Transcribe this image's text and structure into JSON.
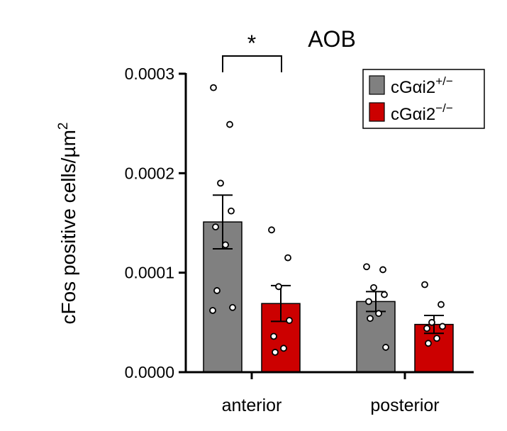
{
  "chart_data": {
    "type": "bar",
    "title": "AOB",
    "ylabel": "cFos positive cells/µm",
    "ylabel_sup": "2",
    "ylim": [
      0,
      0.0003
    ],
    "yticks": [
      "0.0000",
      "0.0001",
      "0.0002",
      "0.0003"
    ],
    "categories": [
      "anterior",
      "posterior"
    ],
    "significance": {
      "between": "anterior",
      "label": "*"
    },
    "legend_position": "top-right",
    "series": [
      {
        "name": "cGαi2",
        "name_sup": "+/−",
        "color": "#808080",
        "values": [
          0.000151,
          7.1e-05
        ],
        "sem": [
          2.7e-05,
          1e-05
        ],
        "points": [
          [
            0.000286,
            0.000249,
            0.00019,
            0.000162,
            0.000146,
            0.000128,
            8.2e-05,
            6.5e-05,
            6.2e-05
          ],
          [
            0.000106,
            0.000103,
            8.5e-05,
            7.8e-05,
            7.1e-05,
            5.9e-05,
            5.4e-05,
            2.5e-05
          ]
        ]
      },
      {
        "name": "cGαi2",
        "name_sup": "−/−",
        "color": "#cc0000",
        "values": [
          6.9e-05,
          4.8e-05
        ],
        "sem": [
          1.8e-05,
          9e-06
        ],
        "points": [
          [
            0.000143,
            0.000115,
            8.6e-05,
            5.2e-05,
            3.6e-05,
            2.4e-05,
            2e-05
          ],
          [
            8.8e-05,
            6.8e-05,
            5e-05,
            4.6e-05,
            4.4e-05,
            3.4e-05,
            2.9e-05
          ]
        ]
      }
    ]
  }
}
